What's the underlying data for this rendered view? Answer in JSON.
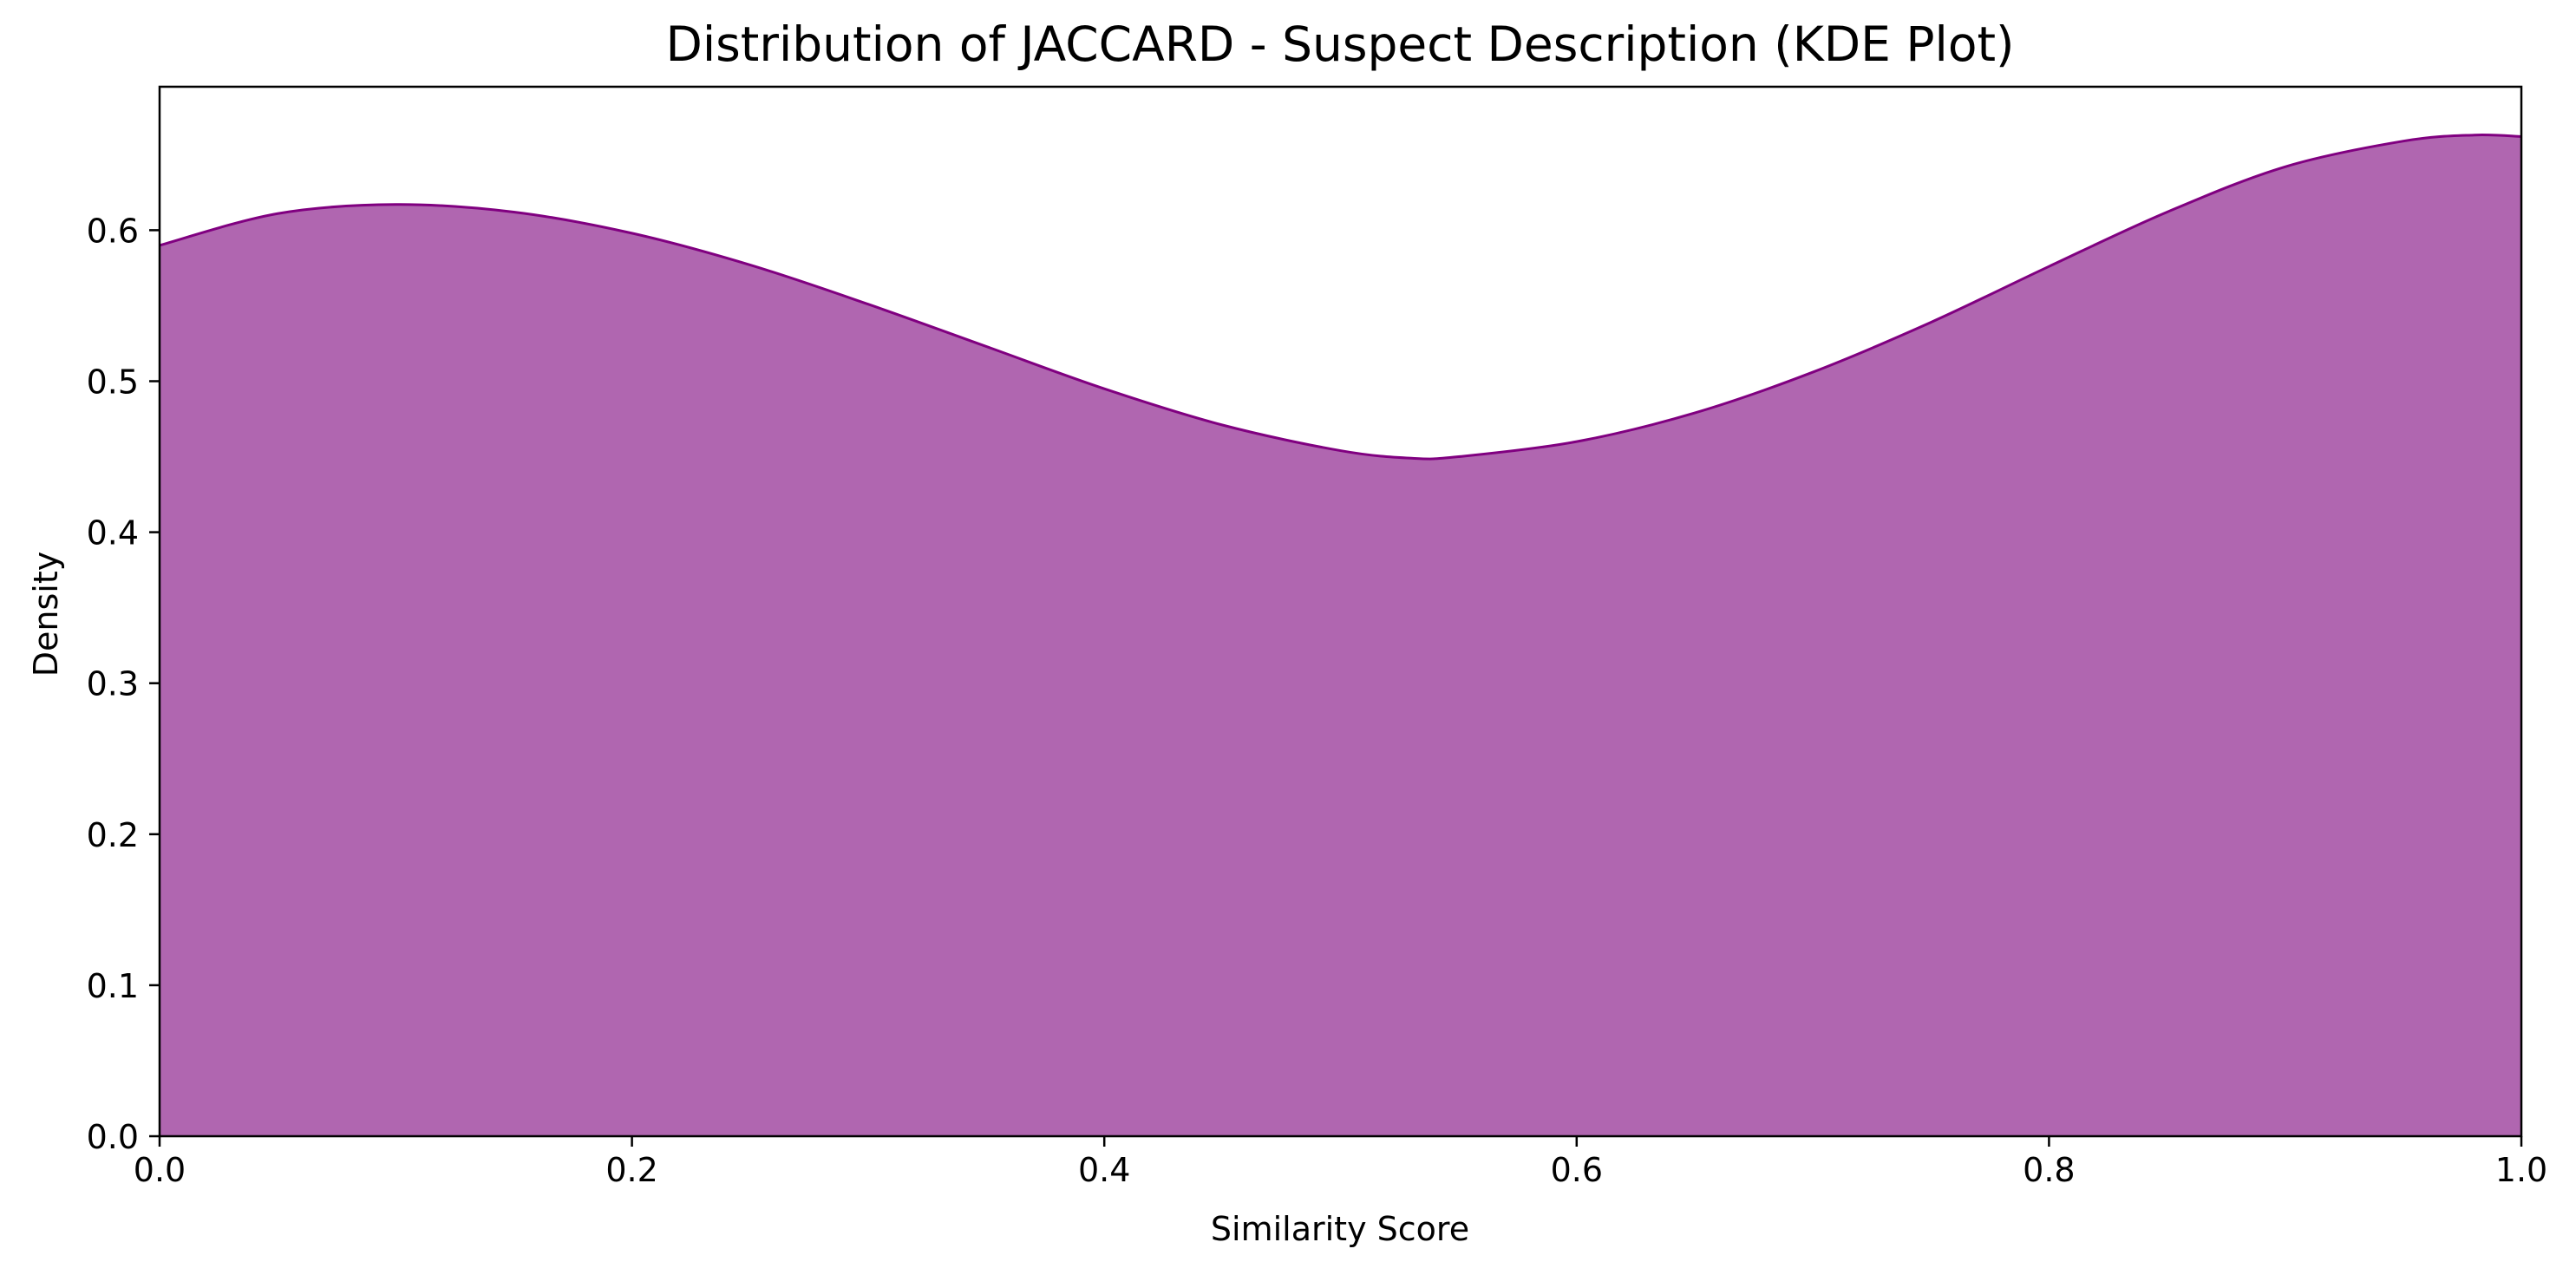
{
  "chart_data": {
    "type": "area",
    "title": "Distribution of JACCARD - Suspect Description (KDE Plot)",
    "xlabel": "Similarity Score",
    "ylabel": "Density",
    "xlim": [
      0.0,
      1.0
    ],
    "ylim": [
      0.0,
      0.695
    ],
    "x_ticks": [
      "0.0",
      "0.2",
      "0.4",
      "0.6",
      "0.8",
      "1.0"
    ],
    "y_ticks": [
      "0.0",
      "0.1",
      "0.2",
      "0.3",
      "0.4",
      "0.5",
      "0.6"
    ],
    "grid": false,
    "legend": "none",
    "series": [
      {
        "x": [
          0.0,
          0.05,
          0.1,
          0.15,
          0.2,
          0.25,
          0.3,
          0.35,
          0.4,
          0.45,
          0.5,
          0.53,
          0.55,
          0.6,
          0.65,
          0.7,
          0.75,
          0.8,
          0.85,
          0.9,
          0.95,
          0.98,
          1.0
        ],
        "y": [
          0.59,
          0.611,
          0.617,
          0.612,
          0.598,
          0.577,
          0.551,
          0.523,
          0.495,
          0.471,
          0.454,
          0.449,
          0.45,
          0.46,
          0.479,
          0.506,
          0.539,
          0.576,
          0.612,
          0.642,
          0.659,
          0.663,
          0.662
        ]
      }
    ],
    "colors": {
      "fill": "#b066b0",
      "line": "#800080"
    }
  }
}
